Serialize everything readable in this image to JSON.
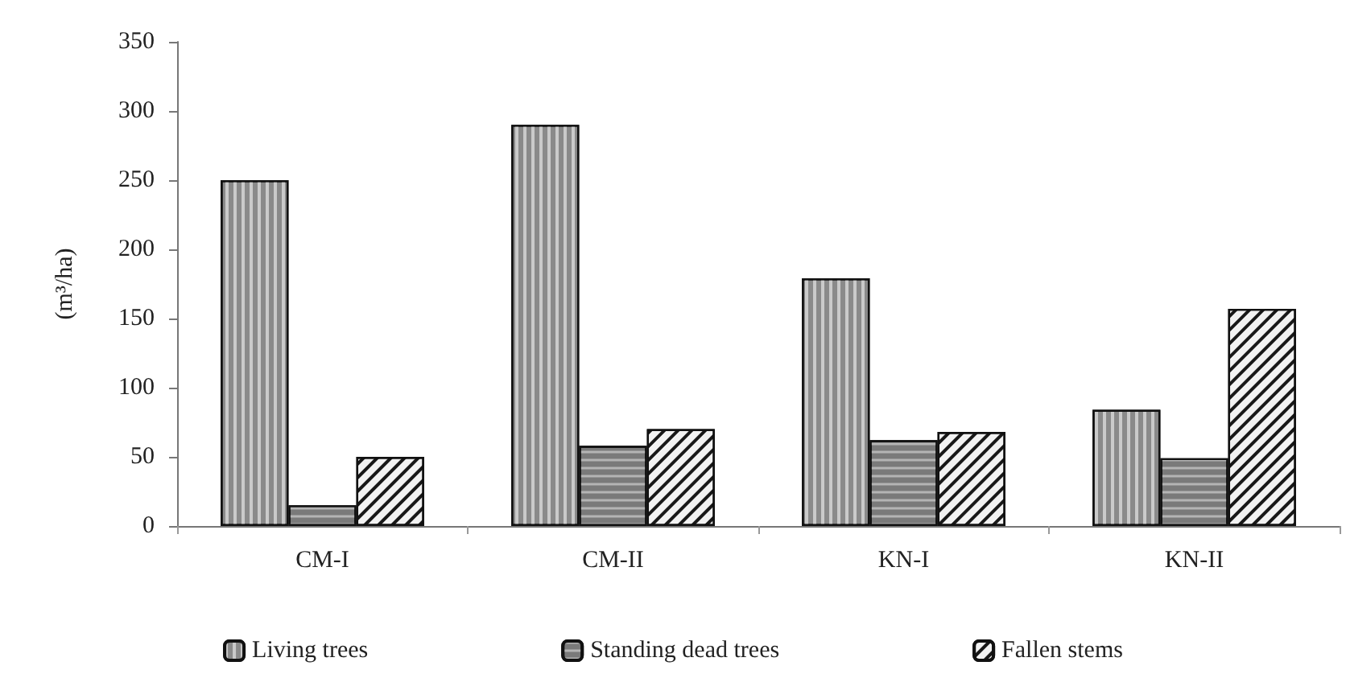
{
  "chart_data": {
    "type": "bar",
    "ylabel": "(m³/ha)",
    "categories": [
      "CM-I",
      "CM-II",
      "KN-I",
      "KN-II"
    ],
    "series": [
      {
        "name": "Living trees",
        "color": "#8a8a8a",
        "values": [
          250,
          290,
          179,
          84
        ]
      },
      {
        "name": "Standing dead trees",
        "color": "#7a7a7a",
        "values": [
          15,
          58,
          62,
          49
        ]
      },
      {
        "name": "Fallen stems",
        "color": "#f2f2f2",
        "values": [
          50,
          70,
          68,
          157
        ]
      }
    ],
    "ylim": [
      0,
      350
    ],
    "yticks": [
      0,
      50,
      100,
      150,
      200,
      250,
      300,
      350
    ],
    "grid": false,
    "legend": "bottom"
  }
}
